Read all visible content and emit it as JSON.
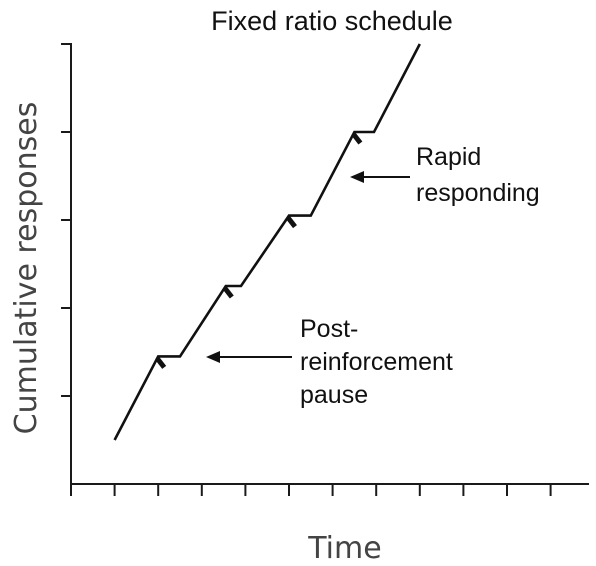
{
  "title": "Fixed ratio schedule",
  "axes": {
    "y_label": "Cumulative responses",
    "x_label": "Time"
  },
  "annotations": {
    "rapid": {
      "lines": [
        "Rapid",
        "responding"
      ]
    },
    "pause": {
      "lines": [
        "Post-",
        "reinforcement",
        "pause"
      ]
    }
  },
  "chart_data": {
    "type": "line",
    "description_units": "x in time tick intervals, y in cumulative response tick intervals",
    "x_ticks": 12,
    "y_ticks": 5,
    "series": [
      {
        "values": [
          [
            1.0,
            0.5
          ],
          [
            2.0,
            1.45
          ],
          [
            2.5,
            1.45
          ],
          [
            3.55,
            2.25
          ],
          [
            3.9,
            2.25
          ],
          [
            5.0,
            3.05
          ],
          [
            5.5,
            3.05
          ],
          [
            6.5,
            4.0
          ],
          [
            6.95,
            4.0
          ],
          [
            8.0,
            5.0
          ]
        ]
      }
    ],
    "reinforcement_marks_at_x": [
      2.0,
      3.55,
      5.0,
      6.5
    ]
  }
}
